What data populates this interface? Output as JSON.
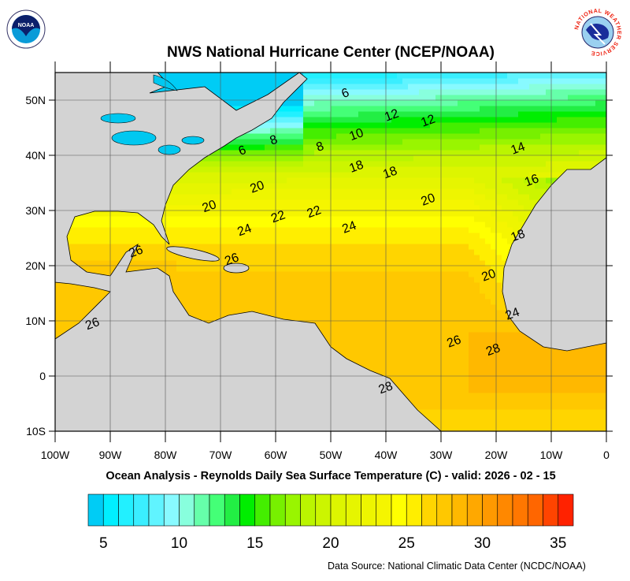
{
  "header": {
    "title": "NWS National Hurricane Center (NCEP/NOAA)",
    "left_logo": "noaa-logo",
    "left_logo_text": "NOAA",
    "right_logo": "nws-logo",
    "right_logo_text": "NATIONAL WEATHER SERVICE"
  },
  "map": {
    "lon_range": [
      -100,
      0
    ],
    "lat_range": [
      -10,
      55
    ],
    "lon_labels": [
      "100W",
      "90W",
      "80W",
      "70W",
      "60W",
      "50W",
      "40W",
      "30W",
      "20W",
      "10W",
      "0"
    ],
    "lat_labels": [
      "10S",
      "0",
      "10N",
      "20N",
      "30N",
      "40N",
      "50N"
    ],
    "grid": true,
    "land_color": "#d3d3d3",
    "contour_labels": [
      {
        "text": "6",
        "lon": -47.4,
        "lat": 51.4
      },
      {
        "text": "12",
        "lon": -39,
        "lat": 47.4
      },
      {
        "text": "12",
        "lon": -32.4,
        "lat": 46.4
      },
      {
        "text": "10",
        "lon": -45.4,
        "lat": 43.9
      },
      {
        "text": "6",
        "lon": -66.1,
        "lat": 41
      },
      {
        "text": "8",
        "lon": -60.4,
        "lat": 42.9
      },
      {
        "text": "8",
        "lon": -52,
        "lat": 41.7
      },
      {
        "text": "14",
        "lon": -16.1,
        "lat": 41.4
      },
      {
        "text": "18",
        "lon": -45.4,
        "lat": 38.1
      },
      {
        "text": "18",
        "lon": -39.3,
        "lat": 37
      },
      {
        "text": "16",
        "lon": -13.6,
        "lat": 35.6
      },
      {
        "text": "20",
        "lon": -63.4,
        "lat": 34.4
      },
      {
        "text": "20",
        "lon": -72.1,
        "lat": 30.9
      },
      {
        "text": "20",
        "lon": -32.4,
        "lat": 32.1
      },
      {
        "text": "22",
        "lon": -59.6,
        "lat": 29
      },
      {
        "text": "22",
        "lon": -53.1,
        "lat": 29.9
      },
      {
        "text": "24",
        "lon": -65.7,
        "lat": 26.6
      },
      {
        "text": "24",
        "lon": -46.7,
        "lat": 27.1
      },
      {
        "text": "18",
        "lon": -16.1,
        "lat": 25.6
      },
      {
        "text": "26",
        "lon": -85.4,
        "lat": 22.7
      },
      {
        "text": "26",
        "lon": -68,
        "lat": 21.3
      },
      {
        "text": "20",
        "lon": -21.4,
        "lat": 18.4
      },
      {
        "text": "26",
        "lon": -93.3,
        "lat": 9.6
      },
      {
        "text": "24",
        "lon": -17.1,
        "lat": 11.4
      },
      {
        "text": "26",
        "lon": -27.7,
        "lat": 6.4
      },
      {
        "text": "28",
        "lon": -20.6,
        "lat": 4.9
      },
      {
        "text": "28",
        "lon": -40.1,
        "lat": -2
      }
    ]
  },
  "subtitle": "Ocean Analysis - Reynolds Daily Sea Surface Temperature (C) - valid: 2026 - 02 - 15",
  "colorbar": {
    "min": 4,
    "max": 36,
    "labels": [
      "5",
      "10",
      "15",
      "20",
      "25",
      "30",
      "35"
    ],
    "label_values": [
      5,
      10,
      15,
      20,
      25,
      30,
      35
    ],
    "colors": [
      "#00ccf5",
      "#00efff",
      "#22f0ff",
      "#3aeeff",
      "#60f4ff",
      "#88faff",
      "#88ffdd",
      "#66ffaa",
      "#44ff77",
      "#22ee44",
      "#00ee00",
      "#44ee00",
      "#77f000",
      "#99f500",
      "#bbf500",
      "#ccf500",
      "#ddf500",
      "#e6f500",
      "#eef500",
      "#f5f500",
      "#ffff00",
      "#ffee00",
      "#ffd500",
      "#ffc800",
      "#ffb800",
      "#ffa800",
      "#ff9900",
      "#ff8800",
      "#ff7700",
      "#ff6600",
      "#ff4400",
      "#ff2200"
    ]
  },
  "footer": {
    "source": "Data Source: National Climatic Data Center (NCDC/NOAA)"
  }
}
